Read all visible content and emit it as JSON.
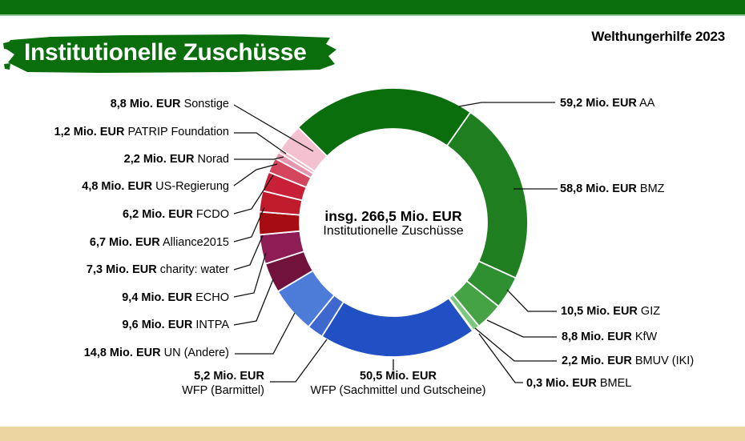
{
  "page": {
    "brand_label": "Welthungerhilfe 2023",
    "title": "Institutionelle Zuschüsse",
    "colors": {
      "brand_green": "#0a6e0c",
      "top_bar": "#0a6e0c",
      "bottom_bar": "#ecd5a0",
      "background": "#ffffff"
    }
  },
  "donut_center": {
    "total_label": "insg. 266,5 Mio. EUR",
    "subtitle": "Institutionelle Zuschüsse"
  },
  "chart_data": {
    "type": "pie",
    "variant": "donut",
    "title": "Institutionelle Zuschüsse",
    "source": "Welthungerhilfe 2023",
    "unit": "Mio. EUR",
    "total_mio_eur": 266.5,
    "center_label": "insg. 266,5 Mio. EUR",
    "center_sublabel": "Institutionelle Zuschüsse",
    "start_angle_deg": -45,
    "direction": "clockwise",
    "legend_position": "callout-labels",
    "segments": [
      {
        "key": "aa",
        "name": "AA",
        "amount_label": "59,2 Mio. EUR",
        "value": 59.2,
        "color": "#0a6e0c"
      },
      {
        "key": "bmz",
        "name": "BMZ",
        "amount_label": "58,8 Mio. EUR",
        "value": 58.8,
        "color": "#1f7e20"
      },
      {
        "key": "giz",
        "name": "GIZ",
        "amount_label": "10,5 Mio. EUR",
        "value": 10.5,
        "color": "#2e9030"
      },
      {
        "key": "kfw",
        "name": "KfW",
        "amount_label": "8,8 Mio. EUR",
        "value": 8.8,
        "color": "#45a346"
      },
      {
        "key": "bmuv",
        "name": "BMUV (IKI)",
        "amount_label": "2,2 Mio. EUR",
        "value": 2.2,
        "color": "#7dc87e"
      },
      {
        "key": "bmel",
        "name": "BMEL",
        "amount_label": "0,3 Mio. EUR",
        "value": 0.3,
        "color": "#b9dfba"
      },
      {
        "key": "wfp_s",
        "name": "WFP (Sachmittel und Gutscheine)",
        "amount_label": "50,5 Mio. EUR",
        "value": 50.5,
        "color": "#2150c4"
      },
      {
        "key": "wfp_b",
        "name": "WFP (Barmittel)",
        "amount_label": "5,2 Mio. EUR",
        "value": 5.2,
        "color": "#3e68cd"
      },
      {
        "key": "un",
        "name": "UN (Andere)",
        "amount_label": "14,8 Mio. EUR",
        "value": 14.8,
        "color": "#4d7cd8"
      },
      {
        "key": "intpa",
        "name": "INTPA",
        "amount_label": "9,6 Mio. EUR",
        "value": 9.6,
        "color": "#70123c"
      },
      {
        "key": "echo",
        "name": "ECHO",
        "amount_label": "9,4 Mio. EUR",
        "value": 9.4,
        "color": "#8e1c55"
      },
      {
        "key": "charity",
        "name": "charity: water",
        "amount_label": "7,3 Mio. EUR",
        "value": 7.3,
        "color": "#a50d12"
      },
      {
        "key": "alliance",
        "name": "Alliance2015",
        "amount_label": "6,7 Mio. EUR",
        "value": 6.7,
        "color": "#bf1b2a"
      },
      {
        "key": "fcdo",
        "name": "FCDO",
        "amount_label": "6,2 Mio. EUR",
        "value": 6.2,
        "color": "#c72038"
      },
      {
        "key": "us",
        "name": "US-Regierung",
        "amount_label": "4,8 Mio. EUR",
        "value": 4.8,
        "color": "#d4455e"
      },
      {
        "key": "norad",
        "name": "Norad",
        "amount_label": "2,2 Mio. EUR",
        "value": 2.2,
        "color": "#e695ac"
      },
      {
        "key": "patrip",
        "name": "PATRIP Foundation",
        "amount_label": "1,2 Mio. EUR",
        "value": 1.2,
        "color": "#efb3c6"
      },
      {
        "key": "sonstige",
        "name": "Sonstige",
        "amount_label": "8,8 Mio. EUR",
        "value": 8.8,
        "color": "#f3c1d0"
      }
    ]
  }
}
